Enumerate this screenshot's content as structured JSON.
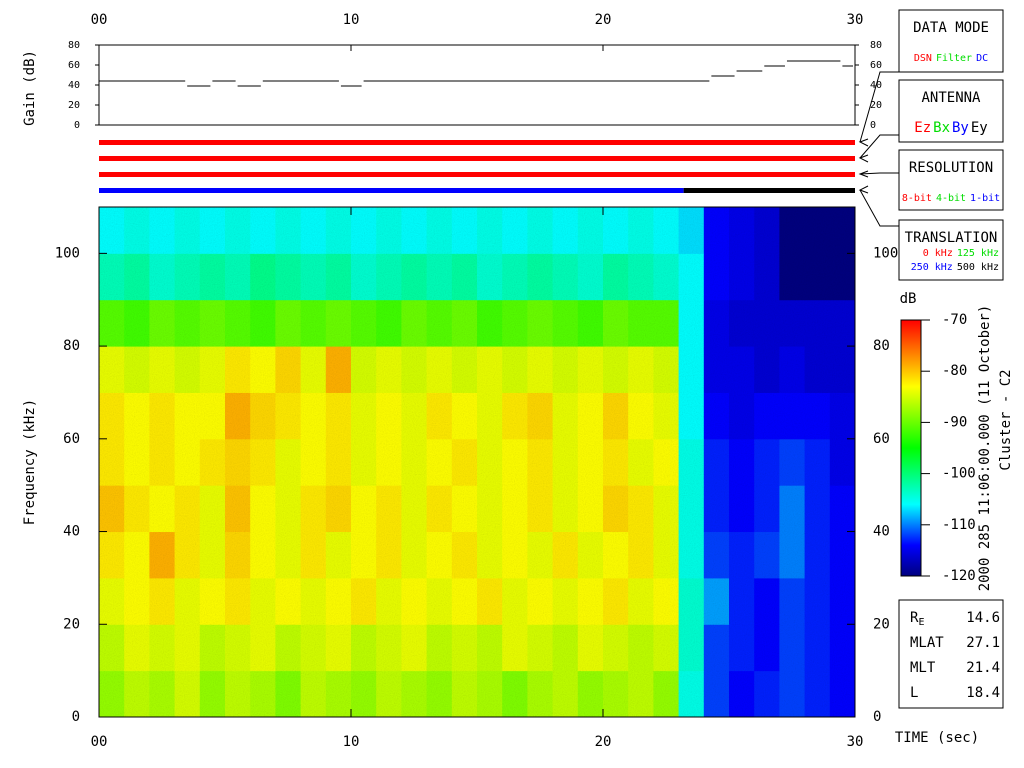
{
  "chart_data": [
    {
      "type": "line",
      "ylabel": "Gain (dB)",
      "xlim": [
        0,
        30
      ],
      "ylim": [
        0,
        80
      ],
      "xticks": [
        {
          "value": 0,
          "label": "00"
        },
        10,
        20,
        30
      ],
      "yticks": [
        0,
        20,
        40,
        60,
        80
      ],
      "x": [
        0,
        3.5,
        4.5,
        5.5,
        6.5,
        9.6,
        10.5,
        24.3,
        25.3,
        26.4,
        27.3,
        29.5
      ],
      "values": [
        44,
        39,
        44,
        39,
        44,
        39,
        44,
        49,
        54,
        59,
        64,
        59
      ],
      "color": "#000000"
    },
    {
      "type": "timeline",
      "xlim": [
        0,
        30
      ],
      "bars": [
        {
          "segments": [
            {
              "start": 0,
              "end": 30,
              "color": "#ff0000"
            }
          ]
        },
        {
          "segments": [
            {
              "start": 0,
              "end": 30,
              "color": "#ff0000"
            }
          ]
        },
        {
          "segments": [
            {
              "start": 0,
              "end": 30,
              "color": "#ff0000"
            }
          ]
        },
        {
          "segments": [
            {
              "start": 0,
              "end": 23.2,
              "color": "#0000ff"
            },
            {
              "start": 23.2,
              "end": 30,
              "color": "#000000"
            }
          ]
        }
      ]
    },
    {
      "type": "heatmap",
      "xlabel": "TIME (sec)",
      "ylabel": "Frequency (kHz)",
      "xlim": [
        0,
        30
      ],
      "ylim": [
        0,
        110
      ],
      "xticks": [
        {
          "value": 0,
          "label": "00"
        },
        10,
        20,
        30
      ],
      "yticks": [
        0,
        20,
        40,
        60,
        80,
        100
      ],
      "xbins": [
        0,
        1,
        2,
        3,
        4,
        5,
        6,
        7,
        8,
        9,
        10,
        11,
        12,
        13,
        14,
        15,
        16,
        17,
        18,
        19,
        20,
        21,
        22,
        23,
        24,
        25,
        26,
        27,
        28,
        29,
        30
      ],
      "ybins": [
        0,
        10,
        20,
        30,
        40,
        50,
        60,
        70,
        80,
        90,
        100,
        110
      ],
      "z": [
        [
          -88,
          -86,
          -87,
          -85,
          -88,
          -86,
          -87,
          -89,
          -86,
          -87,
          -88,
          -86,
          -87,
          -88,
          -86,
          -87,
          -89,
          -87,
          -86,
          -88,
          -87,
          -86,
          -88,
          -105,
          -112,
          -114,
          -113,
          -112,
          -113,
          -114
        ],
        [
          -86,
          -84,
          -85,
          -84,
          -86,
          -85,
          -84,
          -86,
          -85,
          -84,
          -86,
          -85,
          -84,
          -86,
          -85,
          -86,
          -84,
          -85,
          -86,
          -84,
          -85,
          -86,
          -85,
          -104,
          -112,
          -113,
          -114,
          -112,
          -113,
          -114
        ],
        [
          -84,
          -83,
          -82,
          -84,
          -83,
          -82,
          -84,
          -83,
          -84,
          -83,
          -82,
          -84,
          -83,
          -84,
          -83,
          -82,
          -84,
          -83,
          -84,
          -83,
          -82,
          -84,
          -83,
          -104,
          -109,
          -113,
          -114,
          -112,
          -113,
          -114
        ],
        [
          -82,
          -83,
          -79,
          -82,
          -84,
          -81,
          -83,
          -84,
          -82,
          -84,
          -83,
          -82,
          -84,
          -83,
          -82,
          -84,
          -83,
          -84,
          -82,
          -84,
          -83,
          -82,
          -84,
          -105,
          -112,
          -113,
          -112,
          -110,
          -113,
          -114
        ],
        [
          -80,
          -82,
          -83,
          -82,
          -84,
          -80,
          -83,
          -84,
          -82,
          -81,
          -83,
          -82,
          -84,
          -82,
          -83,
          -84,
          -83,
          -82,
          -84,
          -83,
          -81,
          -82,
          -84,
          -105,
          -113,
          -114,
          -113,
          -110,
          -113,
          -114
        ],
        [
          -82,
          -83,
          -82,
          -83,
          -82,
          -81,
          -82,
          -84,
          -83,
          -82,
          -84,
          -83,
          -84,
          -83,
          -82,
          -84,
          -83,
          -82,
          -84,
          -83,
          -82,
          -84,
          -83,
          -105,
          -113,
          -114,
          -113,
          -112,
          -113,
          -115
        ],
        [
          -82,
          -83,
          -82,
          -83,
          -83,
          -79,
          -81,
          -82,
          -83,
          -82,
          -84,
          -83,
          -84,
          -82,
          -83,
          -84,
          -82,
          -81,
          -84,
          -83,
          -81,
          -83,
          -84,
          -106,
          -114,
          -115,
          -114,
          -114,
          -114,
          -115
        ],
        [
          -84,
          -85,
          -84,
          -85,
          -84,
          -82,
          -83,
          -81,
          -84,
          -79,
          -85,
          -84,
          -85,
          -84,
          -85,
          -84,
          -85,
          -84,
          -85,
          -84,
          -85,
          -84,
          -85,
          -106,
          -115,
          -115,
          -116,
          -115,
          -116,
          -116
        ],
        [
          -91,
          -92,
          -90,
          -91,
          -90,
          -91,
          -92,
          -90,
          -91,
          -90,
          -91,
          -92,
          -90,
          -91,
          -90,
          -92,
          -91,
          -90,
          -91,
          -92,
          -90,
          -91,
          -91,
          -106,
          -115,
          -116,
          -116,
          -116,
          -116,
          -116
        ],
        [
          -103,
          -102,
          -104,
          -103,
          -102,
          -103,
          -101,
          -102,
          -103,
          -102,
          -104,
          -103,
          -102,
          -103,
          -102,
          -104,
          -103,
          -102,
          -103,
          -104,
          -102,
          -103,
          -104,
          -106,
          -114,
          -115,
          -116,
          -120,
          -120,
          -120
        ],
        [
          -106,
          -105,
          -106,
          -105,
          -106,
          -105,
          -106,
          -105,
          -106,
          -105,
          -106,
          -105,
          -106,
          -105,
          -106,
          -105,
          -106,
          -105,
          -106,
          -105,
          -106,
          -105,
          -106,
          -107,
          -114,
          -115,
          -116,
          -120,
          -120,
          -120
        ]
      ],
      "colorbar": {
        "label": "dB",
        "lim": [
          -120,
          -70
        ],
        "ticks": [
          -70,
          -80,
          -90,
          -100,
          -110,
          -120
        ],
        "colorscale": [
          [
            -120,
            "#00007f"
          ],
          [
            -114,
            "#0000ff"
          ],
          [
            -106,
            "#00ffff"
          ],
          [
            -95,
            "#00ff00"
          ],
          [
            -83,
            "#ffff00"
          ],
          [
            -70,
            "#ff0000"
          ]
        ]
      },
      "annotations": [
        "2000 285 11:06:00.000 (11 October)",
        "Cluster - C2"
      ]
    }
  ],
  "legend_panels": [
    {
      "title": "DATA MODE",
      "rows": [
        [
          {
            "text": "DSN",
            "color": "#ff0000"
          },
          {
            "text": "Filter",
            "color": "#00dd00"
          },
          {
            "text": "DC",
            "color": "#0000ff"
          }
        ]
      ]
    },
    {
      "title": "ANTENNA",
      "rows": [
        [
          {
            "text": "Ez",
            "color": "#ff0000"
          },
          {
            "text": "Bx",
            "color": "#00dd00"
          },
          {
            "text": "By",
            "color": "#0000ff"
          },
          {
            "text": "Ey",
            "color": "#000000"
          }
        ]
      ]
    },
    {
      "title": "RESOLUTION",
      "rows": [
        [
          {
            "text": "8-bit",
            "color": "#ff0000"
          },
          {
            "text": "4-bit",
            "color": "#00dd00"
          },
          {
            "text": "1-bit",
            "color": "#0000ff"
          }
        ]
      ]
    },
    {
      "title": "TRANSLATION",
      "rows": [
        [
          {
            "text": "0 kHz",
            "color": "#ff0000"
          },
          {
            "text": "125 kHz",
            "color": "#00dd00"
          }
        ],
        [
          {
            "text": "250 kHz",
            "color": "#0000ff"
          },
          {
            "text": "500 kHz",
            "color": "#000000"
          }
        ]
      ]
    }
  ],
  "info": [
    {
      "label": "R",
      "sub": "E",
      "value": 14.6
    },
    {
      "label": "MLAT",
      "value": 27.1
    },
    {
      "label": "MLT",
      "value": 21.4
    },
    {
      "label": "L",
      "value": 18.4
    }
  ]
}
